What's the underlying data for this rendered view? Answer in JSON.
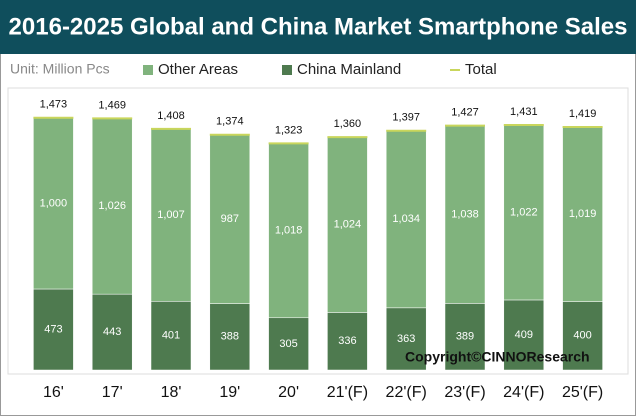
{
  "chart_data": {
    "type": "bar",
    "stacked": true,
    "title": "2016-2025 Global and China Market Smartphone Sales",
    "unit_label": "Unit: Million Pcs",
    "copyright": "Copyright©CINNOResearch",
    "categories": [
      "16'",
      "17'",
      "18'",
      "19'",
      "20'",
      "21'(F)",
      "22'(F)",
      "23'(F)",
      "24'(F)",
      "25'(F)"
    ],
    "series": [
      {
        "name": "Other Areas",
        "color": "#80b37d",
        "values": [
          1000,
          1026,
          1007,
          987,
          1018,
          1024,
          1034,
          1038,
          1022,
          1019
        ],
        "value_labels": [
          "1,000",
          "1,026",
          "1,007",
          "987",
          "1,018",
          "1,024",
          "1,034",
          "1,038",
          "1,022",
          "1,019"
        ]
      },
      {
        "name": "China Mainland",
        "color": "#4e7a4f",
        "values": [
          473,
          443,
          401,
          388,
          305,
          336,
          363,
          389,
          409,
          400
        ]
      },
      {
        "name": "Total",
        "color": "#c9d65c",
        "type": "line",
        "values": [
          1473,
          1469,
          1408,
          1374,
          1323,
          1360,
          1397,
          1427,
          1431,
          1419
        ],
        "value_labels": [
          "1,473",
          "1,469",
          "1,408",
          "1,374",
          "1,323",
          "1,360",
          "1,397",
          "1,427",
          "1,431",
          "1,419"
        ]
      }
    ],
    "stack_order": [
      1,
      0
    ],
    "ylim": [
      0,
      1600
    ]
  }
}
